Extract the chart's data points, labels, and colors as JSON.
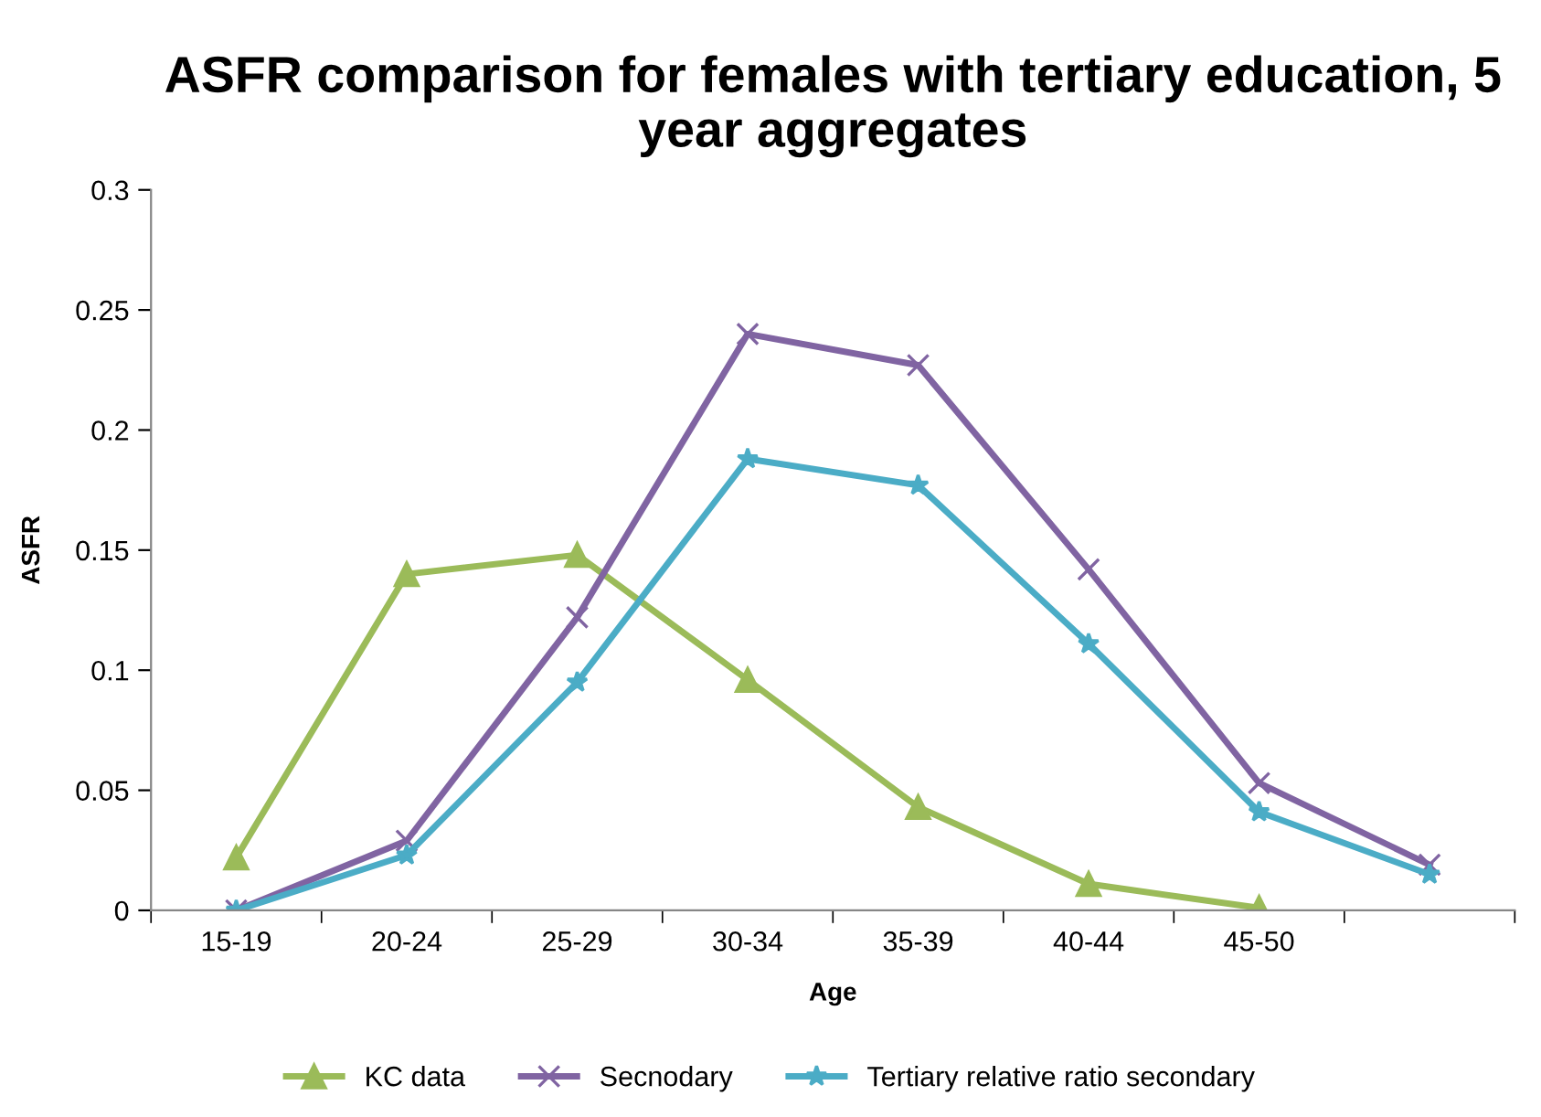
{
  "chart_data": {
    "type": "line",
    "title": "ASFR comparison for females with tertiary education, 5 year aggregates",
    "xlabel": "Age",
    "ylabel": "ASFR",
    "categories": [
      "15-19",
      "20-24",
      "25-29",
      "30-34",
      "35-39",
      "40-44",
      "45-50",
      null
    ],
    "series": [
      {
        "name": "KC data",
        "color": "#9bbb59",
        "marker": "triangle",
        "values": [
          0.022,
          0.14,
          0.148,
          0.096,
          0.043,
          0.011,
          0.001,
          null
        ]
      },
      {
        "name": "Secnodary",
        "color": "#8064a2",
        "marker": "cross",
        "values": [
          0.0,
          0.029,
          0.122,
          0.24,
          0.227,
          0.142,
          0.053,
          0.019
        ]
      },
      {
        "name": "Tertiary relative ratio secondary",
        "color": "#4bacc6",
        "marker": "star",
        "values": [
          0.0,
          0.023,
          0.095,
          0.188,
          0.177,
          0.111,
          0.041,
          0.015
        ]
      }
    ],
    "ylim": [
      0,
      0.3
    ],
    "yticks": [
      0,
      0.05,
      0.1,
      0.15,
      0.2,
      0.25,
      0.3
    ],
    "grid": false,
    "legend": "bottom",
    "line_style": "solid"
  }
}
